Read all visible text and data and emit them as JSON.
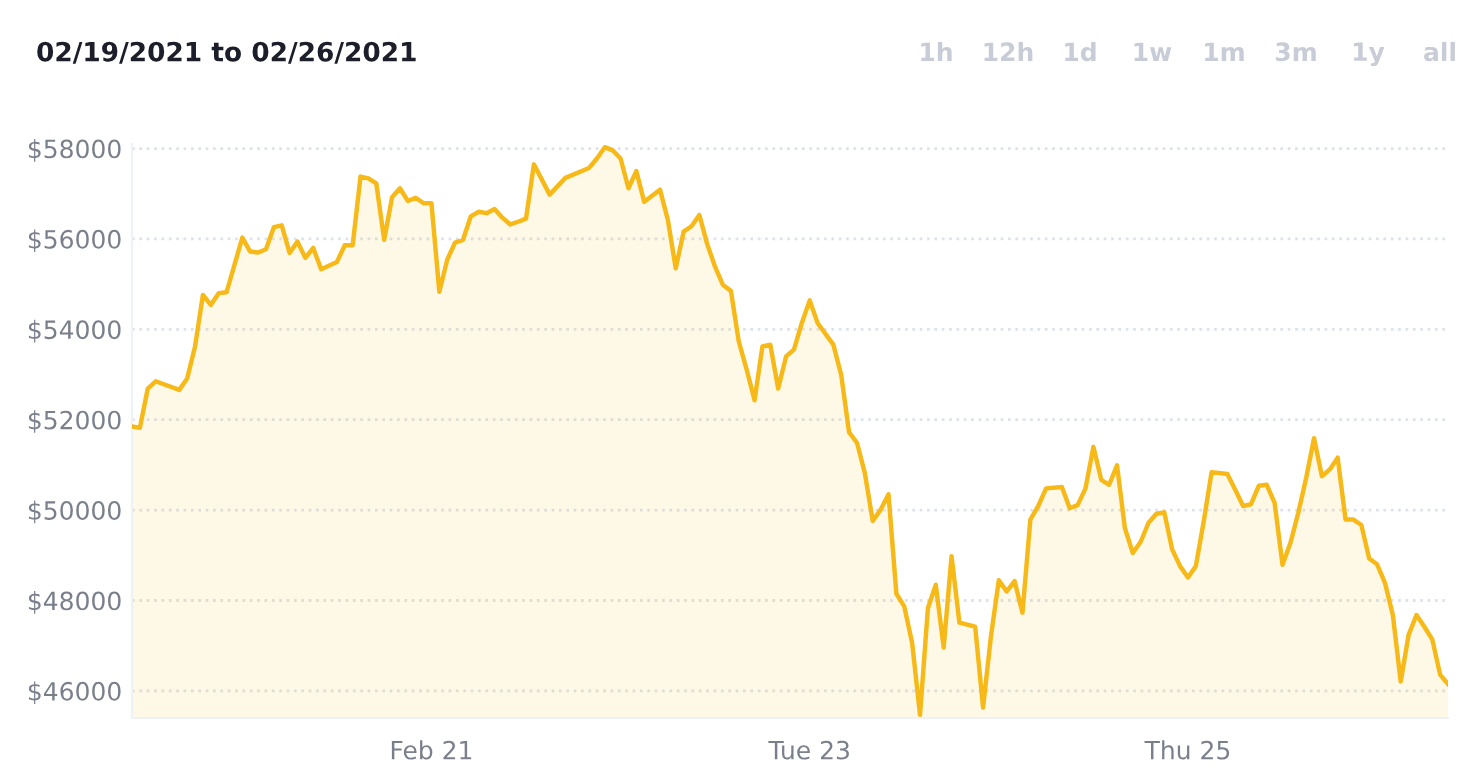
{
  "chart_data": {
    "type": "area",
    "title": "02/19/2021 to 02/26/2021",
    "annotations": [
      "1h",
      "12h",
      "1d",
      "1w",
      "1m",
      "3m",
      "1y",
      "all"
    ],
    "x": [
      "2021-02-19T10:00",
      "2021-02-19T11:00",
      "2021-02-19T12:00",
      "2021-02-19T13:00",
      "2021-02-19T16:00",
      "2021-02-19T17:00",
      "2021-02-19T18:00",
      "2021-02-19T19:00",
      "2021-02-19T20:00",
      "2021-02-19T21:00",
      "2021-02-19T22:00",
      "2021-02-20T00:00",
      "2021-02-20T01:00",
      "2021-02-20T02:00",
      "2021-02-20T03:00",
      "2021-02-20T04:00",
      "2021-02-20T05:00",
      "2021-02-20T06:00",
      "2021-02-20T07:00",
      "2021-02-20T08:00",
      "2021-02-20T09:00",
      "2021-02-20T10:00",
      "2021-02-20T12:00",
      "2021-02-20T13:00",
      "2021-02-20T14:00",
      "2021-02-20T15:00",
      "2021-02-20T16:00",
      "2021-02-20T17:00",
      "2021-02-20T18:00",
      "2021-02-20T19:00",
      "2021-02-20T20:00",
      "2021-02-20T21:00",
      "2021-02-20T22:00",
      "2021-02-20T23:00",
      "2021-02-21T00:00",
      "2021-02-21T01:00",
      "2021-02-21T02:00",
      "2021-02-21T03:00",
      "2021-02-21T04:00",
      "2021-02-21T05:00",
      "2021-02-21T06:00",
      "2021-02-21T07:00",
      "2021-02-21T08:00",
      "2021-02-21T09:00",
      "2021-02-21T10:00",
      "2021-02-21T11:00",
      "2021-02-21T12:00",
      "2021-02-21T13:00",
      "2021-02-21T15:00",
      "2021-02-21T17:00",
      "2021-02-21T20:00",
      "2021-02-21T21:00",
      "2021-02-21T22:00",
      "2021-02-21T23:00",
      "2021-02-22T00:00",
      "2021-02-22T01:00",
      "2021-02-22T02:00",
      "2021-02-22T03:00",
      "2021-02-22T05:00",
      "2021-02-22T06:00",
      "2021-02-22T07:00",
      "2021-02-22T08:00",
      "2021-02-22T09:00",
      "2021-02-22T10:00",
      "2021-02-22T11:00",
      "2021-02-22T12:00",
      "2021-02-22T13:00",
      "2021-02-22T14:00",
      "2021-02-22T15:00",
      "2021-02-22T16:00",
      "2021-02-22T17:00",
      "2021-02-22T18:00",
      "2021-02-22T19:00",
      "2021-02-22T20:00",
      "2021-02-22T21:00",
      "2021-02-22T22:00",
      "2021-02-22T23:00",
      "2021-02-23T00:00",
      "2021-02-23T01:00",
      "2021-02-23T03:00",
      "2021-02-23T04:00",
      "2021-02-23T05:00",
      "2021-02-23T06:00",
      "2021-02-23T07:00",
      "2021-02-23T08:00",
      "2021-02-23T09:00",
      "2021-02-23T10:00",
      "2021-02-23T11:00",
      "2021-02-23T12:00",
      "2021-02-23T13:00",
      "2021-02-23T14:00",
      "2021-02-23T15:00",
      "2021-02-23T16:00",
      "2021-02-23T17:00",
      "2021-02-23T18:00",
      "2021-02-23T19:00",
      "2021-02-23T21:00",
      "2021-02-23T22:00",
      "2021-02-23T23:00",
      "2021-02-24T00:00",
      "2021-02-24T01:00",
      "2021-02-24T02:00",
      "2021-02-24T03:00",
      "2021-02-24T04:00",
      "2021-02-24T05:00",
      "2021-02-24T06:00",
      "2021-02-24T08:00",
      "2021-02-24T09:00",
      "2021-02-24T10:00",
      "2021-02-24T11:00",
      "2021-02-24T12:00",
      "2021-02-24T13:00",
      "2021-02-24T14:00",
      "2021-02-24T15:00",
      "2021-02-24T16:00",
      "2021-02-24T17:00",
      "2021-02-24T18:00",
      "2021-02-24T19:00",
      "2021-02-24T20:00",
      "2021-02-24T21:00",
      "2021-02-24T22:00",
      "2021-02-24T23:00",
      "2021-02-25T00:00",
      "2021-02-25T01:00",
      "2021-02-25T02:00",
      "2021-02-25T03:00",
      "2021-02-25T05:00",
      "2021-02-25T06:00",
      "2021-02-25T07:00",
      "2021-02-25T08:00",
      "2021-02-25T09:00",
      "2021-02-25T10:00",
      "2021-02-25T11:00",
      "2021-02-25T12:00",
      "2021-02-25T13:00",
      "2021-02-25T14:00",
      "2021-02-25T15:00",
      "2021-02-25T16:00",
      "2021-02-25T17:00",
      "2021-02-25T18:00",
      "2021-02-25T19:00",
      "2021-02-25T20:00",
      "2021-02-25T21:00",
      "2021-02-25T22:00",
      "2021-02-25T23:00",
      "2021-02-26T00:00",
      "2021-02-26T01:00",
      "2021-02-26T02:00",
      "2021-02-26T03:00",
      "2021-02-26T04:00",
      "2021-02-26T05:00",
      "2021-02-26T06:00",
      "2021-02-26T07:00",
      "2021-02-26T08:00",
      "2021-02-26T09:00"
    ],
    "series": [
      {
        "color": "#f7b918",
        "values": [
          51850,
          51820,
          52690,
          52850,
          52660,
          52910,
          53620,
          54760,
          54540,
          54800,
          54820,
          56030,
          55720,
          55700,
          55770,
          56260,
          56300,
          55690,
          55940,
          55580,
          55800,
          55330,
          55490,
          55860,
          55860,
          57380,
          57340,
          57230,
          55980,
          56920,
          57120,
          56840,
          56910,
          56790,
          56790,
          54830,
          55540,
          55920,
          55980,
          56500,
          56600,
          56570,
          56660,
          56470,
          56320,
          56380,
          56450,
          57650,
          56980,
          57350,
          57570,
          57780,
          58030,
          57960,
          57780,
          57120,
          57500,
          56820,
          57090,
          56420,
          55350,
          56160,
          56280,
          56530,
          55880,
          55380,
          54980,
          54850,
          53730,
          53110,
          52430,
          53620,
          53660,
          52690,
          53400,
          53550,
          54140,
          54640,
          54140,
          53660,
          52990,
          51720,
          51490,
          50820,
          49760,
          50010,
          50350,
          48150,
          47870,
          47060,
          45470,
          47830,
          48350,
          46960,
          48980,
          47510,
          47420,
          45630,
          47210,
          48450,
          48200,
          48430,
          47730,
          49790,
          50090,
          50480,
          50510,
          50040,
          50110,
          50480,
          51400,
          50670,
          50560,
          50990,
          49600,
          49050,
          49300,
          49720,
          49920,
          49950,
          49130,
          48760,
          48510,
          48760,
          49750,
          50840,
          50800,
          50450,
          50090,
          50130,
          50540,
          50560,
          50160,
          48790,
          49270,
          49940,
          50710,
          51590,
          50750,
          50900,
          51160,
          49790,
          49790,
          49670,
          48930,
          48800,
          48390,
          47680,
          46210,
          47240,
          47680,
          47420,
          47140,
          46360,
          46150
        ]
      }
    ],
    "xlim": [
      "2021-02-19T10:00",
      "2021-02-26T09:00"
    ],
    "xticks": [
      {
        "value": "2021-02-21",
        "label": "Feb 21"
      },
      {
        "value": "2021-02-23",
        "label": "Tue 23"
      },
      {
        "value": "2021-02-25",
        "label": "Thu 25"
      }
    ],
    "ylim": [
      45400,
      58100
    ],
    "yticks": [
      {
        "value": 46000,
        "label": "$46000"
      },
      {
        "value": 48000,
        "label": "$48000"
      },
      {
        "value": 50000,
        "label": "$50000"
      },
      {
        "value": 52000,
        "label": "$52000"
      },
      {
        "value": 54000,
        "label": "$54000"
      },
      {
        "value": 56000,
        "label": "$56000"
      },
      {
        "value": 58000,
        "label": "$58000"
      }
    ],
    "grid": "y",
    "line_style": "solid",
    "marker": "none"
  }
}
